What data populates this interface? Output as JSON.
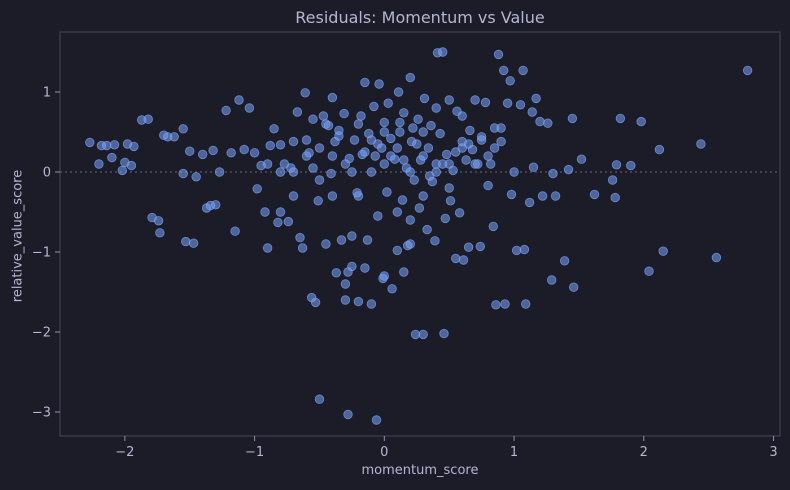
{
  "chart_data": {
    "type": "scatter",
    "title": "Residuals: Momentum vs Value",
    "xlabel": "momentum_score",
    "ylabel": "relative_value_score",
    "xlim": [
      -2.5,
      3.05
    ],
    "ylim": [
      -3.3,
      1.75
    ],
    "x_ticks": [
      -2,
      -1,
      0,
      1,
      2,
      3
    ],
    "x_tick_labels": [
      "−2",
      "−1",
      "0",
      "1",
      "2",
      "3"
    ],
    "y_ticks": [
      -3,
      -2,
      -1,
      0,
      1
    ],
    "y_tick_labels": [
      "−3",
      "−2",
      "−1",
      "0",
      "1"
    ],
    "reference_line_y": 0,
    "grid": false,
    "point_color": "#7aa2f7",
    "points": [
      [
        -2.27,
        0.37
      ],
      [
        -2.2,
        0.1
      ],
      [
        -2.18,
        0.33
      ],
      [
        -2.14,
        0.33
      ],
      [
        -2.1,
        0.18
      ],
      [
        -2.08,
        0.34
      ],
      [
        -2.02,
        0.02
      ],
      [
        -2.0,
        0.12
      ],
      [
        -1.98,
        0.35
      ],
      [
        -1.95,
        0.08
      ],
      [
        -1.93,
        0.32
      ],
      [
        -1.87,
        0.65
      ],
      [
        -1.82,
        0.66
      ],
      [
        -1.79,
        -0.57
      ],
      [
        -1.74,
        -0.61
      ],
      [
        -1.73,
        -0.76
      ],
      [
        -1.7,
        0.46
      ],
      [
        -1.67,
        0.44
      ],
      [
        -1.62,
        0.44
      ],
      [
        -1.55,
        0.54
      ],
      [
        -1.55,
        -0.02
      ],
      [
        -1.53,
        -0.87
      ],
      [
        -1.5,
        0.26
      ],
      [
        -1.47,
        -0.89
      ],
      [
        -1.45,
        -0.06
      ],
      [
        -1.4,
        0.22
      ],
      [
        -1.37,
        -0.45
      ],
      [
        -1.34,
        -0.42
      ],
      [
        -1.32,
        0.27
      ],
      [
        -1.3,
        -0.41
      ],
      [
        -1.27,
        0.0
      ],
      [
        -1.22,
        0.77
      ],
      [
        -1.18,
        0.24
      ],
      [
        -1.15,
        -0.74
      ],
      [
        -1.12,
        0.9
      ],
      [
        -1.08,
        0.28
      ],
      [
        -1.04,
        0.8
      ],
      [
        -1.0,
        0.24
      ],
      [
        -0.98,
        -0.21
      ],
      [
        -0.95,
        0.08
      ],
      [
        -0.92,
        -0.5
      ],
      [
        -0.9,
        -0.95
      ],
      [
        -0.88,
        0.33
      ],
      [
        -0.85,
        0.54
      ],
      [
        -0.82,
        -0.63
      ],
      [
        -0.8,
        0.34
      ],
      [
        -0.77,
        0.1
      ],
      [
        -0.74,
        -0.62
      ],
      [
        -0.72,
        0.05
      ],
      [
        -0.7,
        0.38
      ],
      [
        -0.67,
        0.75
      ],
      [
        -0.65,
        -0.82
      ],
      [
        -0.63,
        -0.95
      ],
      [
        -0.61,
        0.99
      ],
      [
        -0.58,
        0.24
      ],
      [
        -0.56,
        -1.57
      ],
      [
        -0.55,
        0.66
      ],
      [
        -0.53,
        -1.63
      ],
      [
        -0.51,
        -0.36
      ],
      [
        -0.5,
        0.3
      ],
      [
        -0.5,
        -2.84
      ],
      [
        -0.47,
        0.7
      ],
      [
        -0.45,
        -0.9
      ],
      [
        -0.43,
        0.58
      ],
      [
        -0.41,
        -0.02
      ],
      [
        -0.4,
        0.93
      ],
      [
        -0.38,
        0.38
      ],
      [
        -0.37,
        -1.26
      ],
      [
        -0.35,
        0.52
      ],
      [
        -0.33,
        -0.85
      ],
      [
        -0.31,
        0.73
      ],
      [
        -0.3,
        -1.4
      ],
      [
        -0.28,
        -1.25
      ],
      [
        -0.28,
        -3.03
      ],
      [
        -0.27,
        0.17
      ],
      [
        -0.25,
        -1.18
      ],
      [
        -0.23,
        0.4
      ],
      [
        -0.21,
        -0.26
      ],
      [
        -0.2,
        -1.62
      ],
      [
        -0.18,
        0.7
      ],
      [
        -0.17,
        0.22
      ],
      [
        -0.15,
        1.12
      ],
      [
        -0.13,
        -0.85
      ],
      [
        -0.12,
        0.48
      ],
      [
        -0.1,
        -1.65
      ],
      [
        -0.08,
        0.82
      ],
      [
        -0.07,
        0.2
      ],
      [
        -0.06,
        -3.1
      ],
      [
        -0.05,
        -0.55
      ],
      [
        -0.04,
        1.1
      ],
      [
        -0.02,
        0.3
      ],
      [
        -0.01,
        -1.33
      ],
      [
        0.0,
        0.62
      ],
      [
        0.02,
        -0.25
      ],
      [
        0.03,
        0.86
      ],
      [
        0.05,
        0.42
      ],
      [
        0.06,
        -1.46
      ],
      [
        0.08,
        0.16
      ],
      [
        0.1,
        -0.98
      ],
      [
        0.11,
        1.0
      ],
      [
        0.12,
        0.5
      ],
      [
        0.14,
        -0.35
      ],
      [
        0.15,
        0.74
      ],
      [
        0.17,
        0.05
      ],
      [
        0.18,
        -0.92
      ],
      [
        0.2,
        1.18
      ],
      [
        0.21,
        0.38
      ],
      [
        0.23,
        -0.1
      ],
      [
        0.24,
        -2.03
      ],
      [
        0.26,
        0.66
      ],
      [
        0.27,
        -0.45
      ],
      [
        0.28,
        0.15
      ],
      [
        0.3,
        -2.03
      ],
      [
        0.31,
        0.92
      ],
      [
        0.33,
        -0.72
      ],
      [
        0.34,
        0.3
      ],
      [
        0.36,
        0.58
      ],
      [
        0.37,
        -0.12
      ],
      [
        0.39,
        -0.86
      ],
      [
        0.4,
        0.1
      ],
      [
        0.41,
        1.49
      ],
      [
        0.43,
        0.48
      ],
      [
        0.45,
        1.5
      ],
      [
        0.46,
        -2.02
      ],
      [
        0.47,
        -0.58
      ],
      [
        0.48,
        0.22
      ],
      [
        0.5,
        0.9
      ],
      [
        0.51,
        -0.36
      ],
      [
        0.53,
        0.02
      ],
      [
        0.55,
        -1.08
      ],
      [
        0.56,
        0.76
      ],
      [
        0.58,
        -0.51
      ],
      [
        0.6,
        0.38
      ],
      [
        0.61,
        -1.1
      ],
      [
        0.63,
        0.15
      ],
      [
        0.65,
        -0.94
      ],
      [
        0.66,
        0.52
      ],
      [
        0.68,
        0.28
      ],
      [
        0.7,
        0.9
      ],
      [
        0.72,
        0.1
      ],
      [
        0.74,
        -0.93
      ],
      [
        0.75,
        0.44
      ],
      [
        0.78,
        0.87
      ],
      [
        0.8,
        -0.17
      ],
      [
        0.82,
        0.1
      ],
      [
        0.84,
        -0.68
      ],
      [
        0.85,
        0.55
      ],
      [
        0.86,
        -1.66
      ],
      [
        0.88,
        1.47
      ],
      [
        0.9,
        0.38
      ],
      [
        0.92,
        1.27
      ],
      [
        0.93,
        -1.65
      ],
      [
        0.95,
        0.86
      ],
      [
        0.97,
        1.14
      ],
      [
        0.98,
        -0.28
      ],
      [
        1.0,
        0.0
      ],
      [
        1.02,
        -0.98
      ],
      [
        1.05,
        0.84
      ],
      [
        1.07,
        1.27
      ],
      [
        1.08,
        -0.97
      ],
      [
        1.09,
        -1.65
      ],
      [
        1.12,
        -0.38
      ],
      [
        1.14,
        0.75
      ],
      [
        1.15,
        0.06
      ],
      [
        1.17,
        0.92
      ],
      [
        1.2,
        0.63
      ],
      [
        1.22,
        -0.3
      ],
      [
        1.26,
        0.61
      ],
      [
        1.29,
        -1.35
      ],
      [
        1.3,
        -0.02
      ],
      [
        1.32,
        -0.3
      ],
      [
        1.39,
        -1.11
      ],
      [
        1.42,
        0.03
      ],
      [
        1.45,
        0.67
      ],
      [
        1.46,
        -1.44
      ],
      [
        1.52,
        0.16
      ],
      [
        1.62,
        -0.28
      ],
      [
        1.76,
        -0.1
      ],
      [
        1.78,
        -0.32
      ],
      [
        1.79,
        0.09
      ],
      [
        1.82,
        0.67
      ],
      [
        1.9,
        0.08
      ],
      [
        1.98,
        0.63
      ],
      [
        2.04,
        -1.24
      ],
      [
        2.12,
        0.28
      ],
      [
        2.15,
        -0.99
      ],
      [
        2.44,
        0.35
      ],
      [
        2.56,
        -1.07
      ],
      [
        2.8,
        1.27
      ],
      [
        -0.7,
        0.0
      ],
      [
        -0.6,
        0.2
      ],
      [
        -0.3,
        0.1
      ],
      [
        -0.2,
        0.6
      ],
      [
        -0.1,
        0.0
      ],
      [
        0.0,
        0.1
      ],
      [
        0.1,
        0.3
      ],
      [
        0.2,
        0.0
      ],
      [
        0.3,
        0.2
      ],
      [
        0.4,
        0.0
      ],
      [
        0.5,
        0.1
      ],
      [
        0.6,
        0.3
      ],
      [
        -0.4,
        0.2
      ],
      [
        -0.5,
        -0.1
      ],
      [
        0.1,
        -0.5
      ],
      [
        0.2,
        -0.6
      ],
      [
        -0.2,
        -0.3
      ],
      [
        -0.1,
        0.4
      ],
      [
        0.0,
        0.5
      ],
      [
        0.3,
        0.5
      ],
      [
        0.45,
        0.1
      ],
      [
        0.7,
        0.1
      ],
      [
        0.8,
        0.2
      ],
      [
        -0.8,
        0.0
      ],
      [
        -0.9,
        0.1
      ],
      [
        -0.6,
        0.4
      ],
      [
        0.05,
        0.2
      ],
      [
        0.15,
        0.15
      ],
      [
        0.25,
        0.35
      ],
      [
        0.35,
        -0.05
      ],
      [
        -0.25,
        0.0
      ],
      [
        -0.35,
        0.45
      ],
      [
        0.55,
        0.25
      ],
      [
        0.65,
        0.35
      ],
      [
        0.75,
        0.4
      ],
      [
        0.9,
        0.55
      ],
      [
        -0.15,
        0.25
      ],
      [
        0.12,
        0.62
      ],
      [
        0.22,
        0.55
      ],
      [
        -0.05,
        0.35
      ],
      [
        -0.45,
        0.6
      ],
      [
        -0.55,
        0.05
      ],
      [
        0.4,
        0.8
      ],
      [
        0.6,
        0.7
      ],
      [
        0.85,
        0.3
      ],
      [
        -0.7,
        -0.3
      ],
      [
        -0.8,
        -0.5
      ],
      [
        0.3,
        -0.3
      ],
      [
        0.5,
        -0.2
      ],
      [
        0.2,
        -0.9
      ],
      [
        -0.3,
        -1.6
      ],
      [
        -0.15,
        -1.2
      ],
      [
        0.0,
        -1.3
      ],
      [
        0.15,
        -1.25
      ],
      [
        -0.4,
        -0.3
      ],
      [
        -0.25,
        -0.8
      ]
    ]
  }
}
